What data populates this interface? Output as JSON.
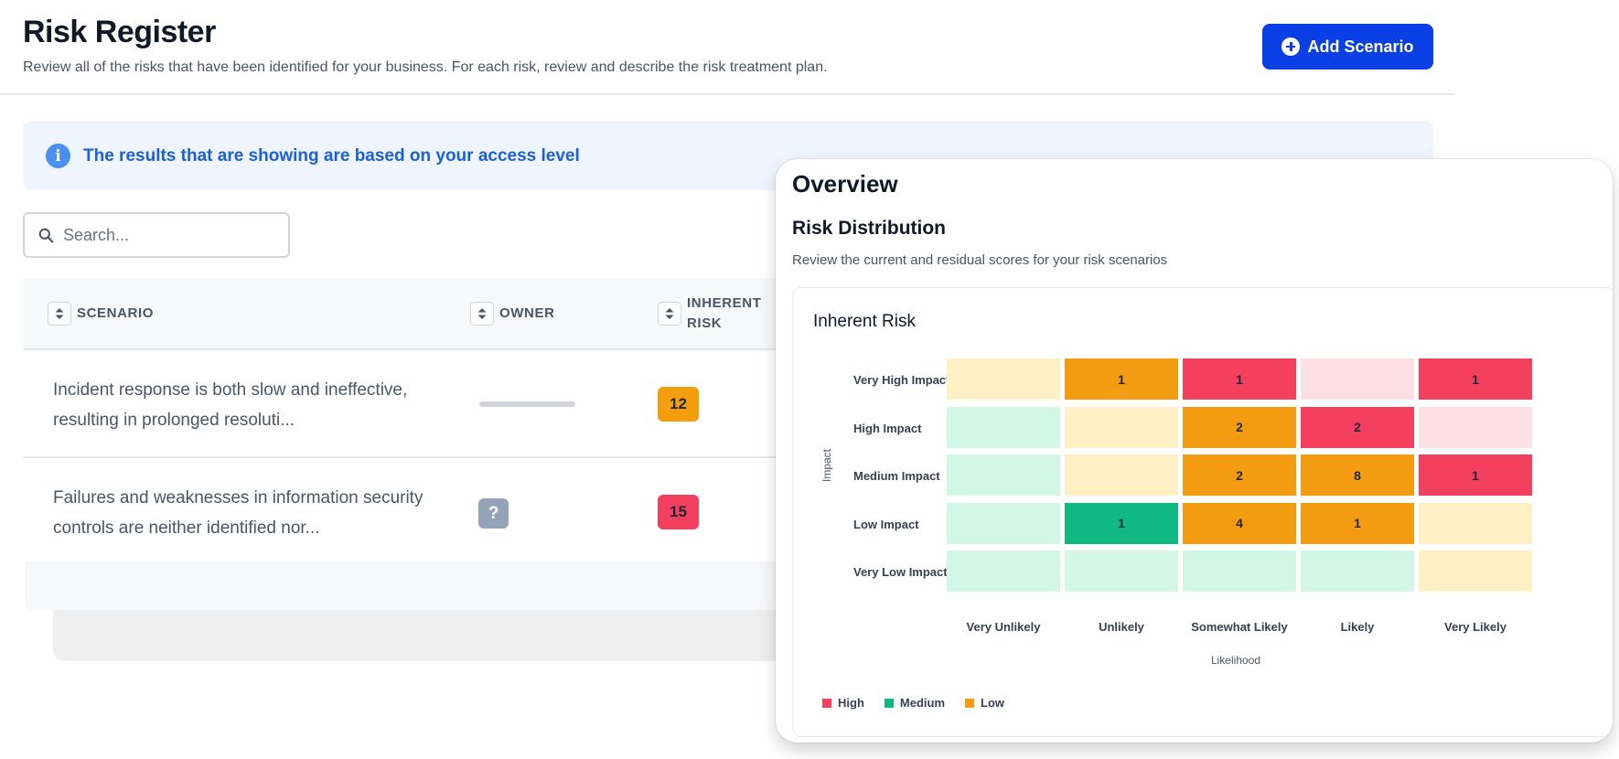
{
  "register": {
    "title": "Risk Register",
    "subtitle": "Review all of the risks that have been identified for your business. For each risk, review and describe the risk treatment plan.",
    "add_button_label": "Add Scenario",
    "banner_text": "The results that are showing are based on your access level",
    "search_placeholder": "Search...",
    "columns": [
      "SCENARIO",
      "OWNER",
      "INHERENT",
      "RISK"
    ],
    "rows": [
      {
        "scenario": "Incident response is both slow and ineffective, resulting in prolonged resoluti...",
        "owner": "",
        "risk": "12",
        "risk_color": "#f59e0b"
      },
      {
        "scenario": "Failures and weaknesses in information security controls are neither identified nor...",
        "owner": "?",
        "risk": "15",
        "risk_color": "#f43f5e"
      }
    ]
  },
  "overview": {
    "title": "Overview",
    "section_title": "Risk Distribution",
    "section_subtitle": "Review the current and residual scores for your risk scenarios",
    "card_title": "Inherent Risk"
  },
  "chart_data": {
    "type": "heatmap",
    "title": "Inherent Risk",
    "xlabel": "Likelihood",
    "ylabel": "Impact",
    "x_categories": [
      "Very Unlikely",
      "Unlikely",
      "Somewhat Likely",
      "Likely",
      "Very Likely"
    ],
    "y_categories": [
      "Very High Impact",
      "High Impact",
      "Medium Impact",
      "Low Impact",
      "Very Low Impact"
    ],
    "values": [
      [
        "",
        "1",
        "1",
        "",
        "1"
      ],
      [
        "",
        "",
        "2",
        "2",
        ""
      ],
      [
        "",
        "",
        "2",
        "8",
        "1"
      ],
      [
        "",
        "1",
        "4",
        "1",
        ""
      ],
      [
        "",
        "",
        "",
        "",
        ""
      ]
    ],
    "cell_colors": [
      [
        "#fdf0c4",
        "#f39c12",
        "#f43f5e",
        "#fde0e4",
        "#f43f5e"
      ],
      [
        "#d2f7e6",
        "#fdf0c4",
        "#f39c12",
        "#f43f5e",
        "#fde0e4"
      ],
      [
        "#d2f7e6",
        "#fdf0c4",
        "#f39c12",
        "#f39c12",
        "#f43f5e"
      ],
      [
        "#d2f7e6",
        "#10b981",
        "#f39c12",
        "#f39c12",
        "#fdf0c4"
      ],
      [
        "#d2f7e6",
        "#d2f7e6",
        "#d2f7e6",
        "#d2f7e6",
        "#fdf0c4"
      ]
    ],
    "legend": [
      {
        "label": "High",
        "color": "#f43f5e"
      },
      {
        "label": "Medium",
        "color": "#10b981"
      },
      {
        "label": "Low",
        "color": "#f39c12"
      }
    ],
    "legend_position": "bottom-left"
  }
}
